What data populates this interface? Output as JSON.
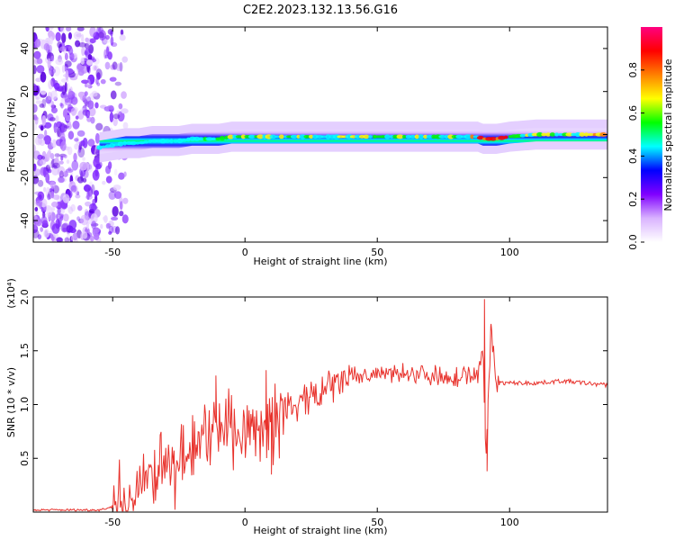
{
  "title": "C2E2.2023.132.13.56.G16",
  "chart_data": [
    {
      "type": "heatmap",
      "xlabel": "Height of straight line (km)",
      "ylabel": "Frequency (Hz)",
      "xlim": [
        -80,
        137
      ],
      "ylim": [
        -50,
        50
      ],
      "x_ticks": [
        -50,
        0,
        50,
        100
      ],
      "y_ticks": [
        -40,
        -20,
        0,
        20,
        40
      ],
      "colorbar": {
        "label": "Normalized spectral amplitude",
        "range": [
          0.0,
          1.0
        ],
        "ticks": [
          "0.0",
          "0.2",
          "0.4",
          "0.6",
          "0.8"
        ],
        "colors": [
          "#ffffff",
          "#d9b3ff",
          "#8000ff",
          "#0000ff",
          "#00ffff",
          "#00ff00",
          "#ffff00",
          "#ff8000",
          "#ff0000",
          "#ff0080"
        ]
      },
      "band_center_hz": [
        [
          -55,
          -6
        ],
        [
          -50,
          -5
        ],
        [
          -45,
          -4
        ],
        [
          -40,
          -4
        ],
        [
          -35,
          -3
        ],
        [
          -30,
          -3
        ],
        [
          -25,
          -3
        ],
        [
          -20,
          -2
        ],
        [
          -15,
          -2
        ],
        [
          -10,
          -2
        ],
        [
          -5,
          -1
        ],
        [
          0,
          -1
        ],
        [
          5,
          -1
        ],
        [
          10,
          -1
        ],
        [
          20,
          -1
        ],
        [
          40,
          -1
        ],
        [
          60,
          -1
        ],
        [
          80,
          -1
        ],
        [
          88,
          -1
        ],
        [
          90,
          -2
        ],
        [
          95,
          -2
        ],
        [
          100,
          -1
        ],
        [
          110,
          0
        ],
        [
          137,
          0
        ]
      ],
      "noise_region_km": [
        -80,
        -45
      ]
    },
    {
      "type": "line",
      "xlabel": "Height of straight line (km)",
      "ylabel": "SNR (10 * v/v)",
      "y_multiplier": "(x10⁴)",
      "xlim": [
        -80,
        137
      ],
      "ylim": [
        0.0,
        2.0
      ],
      "x_ticks": [
        -50,
        0,
        50,
        100
      ],
      "y_ticks": [
        0.5,
        1.0,
        1.5,
        2.0
      ],
      "series": [
        {
          "color": "#e8322c",
          "envelope": [
            [
              -80,
              0.02
            ],
            [
              -55,
              0.02
            ],
            [
              -50,
              0.05
            ],
            [
              -45,
              0.08
            ],
            [
              -40,
              0.2
            ],
            [
              -35,
              0.35
            ],
            [
              -30,
              0.4
            ],
            [
              -25,
              0.5
            ],
            [
              -20,
              0.6
            ],
            [
              -15,
              0.7
            ],
            [
              -10,
              0.8
            ],
            [
              -5,
              0.82
            ],
            [
              0,
              0.75
            ],
            [
              5,
              0.8
            ],
            [
              10,
              0.8
            ],
            [
              15,
              0.95
            ],
            [
              20,
              1.0
            ],
            [
              25,
              1.05
            ],
            [
              30,
              1.12
            ],
            [
              35,
              1.2
            ],
            [
              40,
              1.25
            ],
            [
              50,
              1.28
            ],
            [
              60,
              1.3
            ],
            [
              70,
              1.28
            ],
            [
              80,
              1.25
            ],
            [
              88,
              1.28
            ],
            [
              90,
              1.6
            ],
            [
              91,
              0.4
            ],
            [
              93,
              1.7
            ],
            [
              95,
              1.2
            ],
            [
              100,
              1.2
            ],
            [
              110,
              1.2
            ],
            [
              120,
              1.22
            ],
            [
              137,
              1.18
            ]
          ],
          "spikes": [
            [
              -11,
              1.27
            ],
            [
              -5,
              0.95
            ],
            [
              8,
              1.32
            ],
            [
              10,
              0.35
            ],
            [
              13,
              0.5
            ],
            [
              90.5,
              1.98
            ],
            [
              91.5,
              0.38
            ],
            [
              93,
              1.75
            ]
          ]
        }
      ]
    }
  ]
}
